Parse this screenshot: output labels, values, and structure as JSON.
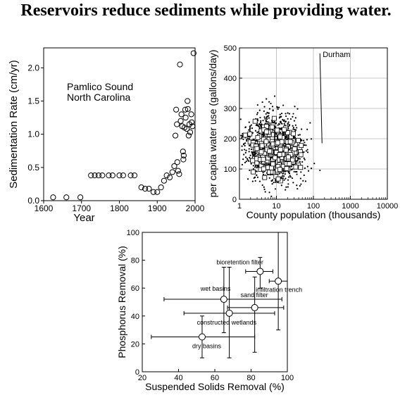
{
  "page": {
    "title": "Reservoirs reduce sediments while providing water."
  },
  "chart_data": [
    {
      "type": "scatter",
      "title": "",
      "annotation": [
        "Pamlico Sound",
        "North Carolina"
      ],
      "xlabel": "Year",
      "ylabel": "Sedimentation Rate (cm/yr)",
      "xlim": [
        1600,
        2000
      ],
      "ylim": [
        0,
        2.3
      ],
      "xticks": [
        1600,
        1700,
        1800,
        1900,
        2000
      ],
      "xtick_labels": [
        "1600",
        "1700",
        "1800",
        "1900",
        "2000"
      ],
      "yticks": [
        0,
        0.5,
        1.0,
        1.5,
        2.0
      ],
      "ytick_labels": [
        "0.0",
        "0.5",
        "1.0",
        "1.5",
        "2.0"
      ],
      "grid": false,
      "points": [
        [
          1625,
          0.05
        ],
        [
          1660,
          0.05
        ],
        [
          1697,
          0.05
        ],
        [
          1725,
          0.38
        ],
        [
          1735,
          0.38
        ],
        [
          1745,
          0.38
        ],
        [
          1755,
          0.38
        ],
        [
          1772,
          0.38
        ],
        [
          1782,
          0.38
        ],
        [
          1800,
          0.38
        ],
        [
          1810,
          0.38
        ],
        [
          1830,
          0.38
        ],
        [
          1840,
          0.38
        ],
        [
          1858,
          0.2
        ],
        [
          1868,
          0.18
        ],
        [
          1878,
          0.18
        ],
        [
          1890,
          0.13
        ],
        [
          1900,
          0.13
        ],
        [
          1910,
          0.2
        ],
        [
          1918,
          0.3
        ],
        [
          1925,
          0.38
        ],
        [
          1933,
          0.35
        ],
        [
          1940,
          0.43
        ],
        [
          1945,
          0.52
        ],
        [
          1948,
          0.98
        ],
        [
          1950,
          1.37
        ],
        [
          1952,
          1.15
        ],
        [
          1953,
          0.58
        ],
        [
          1955,
          0.45
        ],
        [
          1958,
          0.4
        ],
        [
          1960,
          2.05
        ],
        [
          1962,
          1.2
        ],
        [
          1964,
          1.3
        ],
        [
          1966,
          1.12
        ],
        [
          1968,
          0.74
        ],
        [
          1969,
          0.62
        ],
        [
          1970,
          0.68
        ],
        [
          1972,
          1.1
        ],
        [
          1974,
          1.37
        ],
        [
          1975,
          1.25
        ],
        [
          1978,
          1.08
        ],
        [
          1980,
          1.5
        ],
        [
          1981,
          1.38
        ],
        [
          1983,
          0.98
        ],
        [
          1985,
          1.15
        ],
        [
          1987,
          1.03
        ],
        [
          1990,
          1.3
        ],
        [
          1991,
          1.18
        ],
        [
          1993,
          1.12
        ],
        [
          1996,
          2.22
        ]
      ]
    },
    {
      "type": "scatter",
      "title": "",
      "xlabel": "County population (thousands)",
      "ylabel": "per capita water use (gallons/day)",
      "xscale": "log",
      "xlim": [
        1,
        10000
      ],
      "ylim": [
        0,
        500
      ],
      "xticks": [
        1,
        10,
        100,
        1000,
        10000
      ],
      "xtick_labels": [
        "1",
        "10",
        "100",
        "1000",
        "10000"
      ],
      "yticks": [
        0,
        100,
        200,
        300,
        400,
        500
      ],
      "ytick_labels": [
        "0",
        "100",
        "200",
        "300",
        "400",
        "500"
      ],
      "grid": true,
      "annotation": {
        "label": "Durham",
        "x": 150,
        "y": 470
      },
      "series": [
        {
          "name": "",
          "marker": "dot",
          "count": 1400,
          "center_log_x": 0.95,
          "center_y": 170
        },
        {
          "name": "",
          "marker": "open-square",
          "count": 280,
          "center_log_x": 1.0,
          "center_y": 160
        }
      ]
    },
    {
      "type": "scatter",
      "title": "",
      "xlabel": "Suspended Solids Removal (%)",
      "ylabel": "Phosphorus Removal (%)",
      "xlim": [
        20,
        100
      ],
      "ylim": [
        0,
        100
      ],
      "xticks": [
        20,
        40,
        60,
        80,
        100
      ],
      "xtick_labels": [
        "20",
        "40",
        "60",
        "80",
        "100"
      ],
      "yticks": [
        0,
        20,
        40,
        60,
        80,
        100
      ],
      "ytick_labels": [
        "0",
        "20",
        "40",
        "60",
        "80",
        "100"
      ],
      "grid": false,
      "points": [
        {
          "name": "bioretention filter",
          "x": 85,
          "y": 72,
          "xerr": [
            77,
            92
          ],
          "yerr": [
            60,
            82
          ]
        },
        {
          "name": "infiltration trench",
          "x": 95,
          "y": 65,
          "xerr": [
            90,
            100
          ],
          "yerr": [
            30,
            100
          ]
        },
        {
          "name": "wet basins",
          "x": 65,
          "y": 52,
          "xerr": [
            32,
            97
          ],
          "yerr": [
            28,
            75
          ]
        },
        {
          "name": "sand filter",
          "x": 82,
          "y": 46,
          "xerr": [
            67,
            98
          ],
          "yerr": [
            14,
            68
          ]
        },
        {
          "name": "constructed wetlands",
          "x": 68,
          "y": 42,
          "xerr": [
            43,
            93
          ],
          "yerr": [
            10,
            75
          ]
        },
        {
          "name": "dry basins",
          "x": 53,
          "y": 25,
          "xerr": [
            25,
            82
          ],
          "yerr": [
            10,
            40
          ]
        }
      ]
    }
  ]
}
